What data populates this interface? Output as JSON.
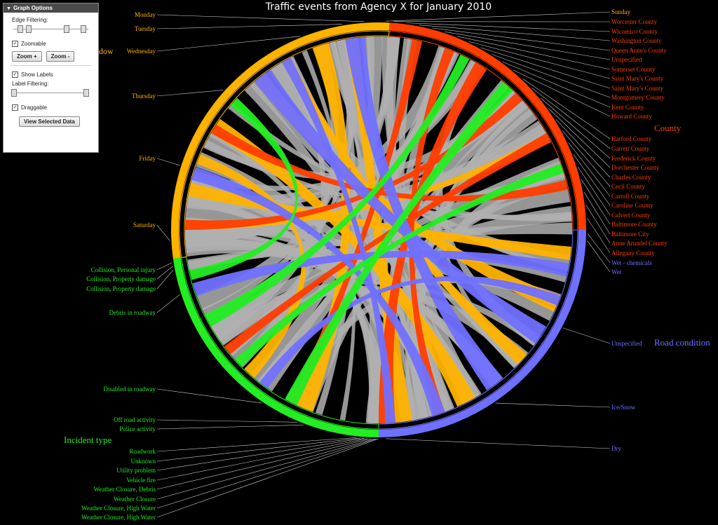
{
  "title": "Traffic events from Agency X for January 2010",
  "colors": {
    "day": "#ffb300",
    "county": "#ff3d00",
    "road": "#7070ff",
    "incident": "#22ee22",
    "chord": "#b0b0b0",
    "line": "#cccccc"
  },
  "groups": {
    "day": {
      "label": "dow",
      "color": "#ffb300"
    },
    "county": {
      "label": "County",
      "color": "#ff3d00"
    },
    "road": {
      "label": "Road condition",
      "color": "#7070ff"
    },
    "incident": {
      "label": "Incident type",
      "color": "#22ee22"
    }
  },
  "labels": {
    "day": [
      "Monday",
      "Tuesday",
      "Wednesday",
      "Thursday",
      "Friday",
      "Saturday",
      "Sunday"
    ],
    "county": [
      "Worcester County",
      "Wicomico County",
      "Washington County",
      "Queen Anne's County",
      "Unspecified",
      "Somerset County",
      "Saint Mary's County",
      "Saint Mary's County",
      "Montgomery County",
      "Kent County",
      "Howard County",
      "Harford County",
      "Garrett County",
      "Frederick County",
      "Dorchester County",
      "Charles County",
      "Cecil County",
      "Carroll County",
      "Caroline County",
      "Calvert County",
      "Baltimore County",
      "Baltimore City",
      "Anne Arundel County",
      "Allegany County"
    ],
    "road": [
      "Wet - chemicals",
      "Wet",
      "Unspecified",
      "Ice/Snow",
      "Dry"
    ],
    "incident": [
      "Collision, Personal injury",
      "Collision, Property damage",
      "Collision, Property damage",
      "Debris in roadway",
      "Disabled in roadway",
      "Off road activity",
      "Police activity",
      "Roadwork",
      "Unknown",
      "Utility problem",
      "Vehicle fire",
      "Weather Closure, Debris",
      "Weather Closure",
      "Weather Closure, High Water",
      "Weather Closure, High Water"
    ]
  },
  "panel": {
    "header": "Graph Options",
    "edge_filtering": "Edge Filtering:",
    "zoomable": "Zoomable",
    "zoom_in": "Zoom +",
    "zoom_out": "Zoom -",
    "show_labels": "Show Labels",
    "label_filtering": "Label Filtering:",
    "draggable": "Draggable",
    "view_selected": "View Selected Data",
    "checked": [
      "Zoomable",
      "Show Labels",
      "Draggable"
    ]
  }
}
